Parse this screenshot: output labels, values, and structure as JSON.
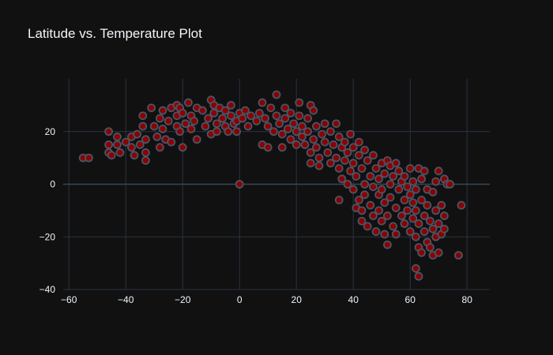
{
  "chart_data": {
    "type": "scatter",
    "title": "Latitude vs. Temperature Plot",
    "xlabel": "",
    "ylabel": "",
    "xlim": [
      -62,
      88
    ],
    "ylim": [
      -40,
      40
    ],
    "x_ticks": [
      -60,
      -40,
      -20,
      0,
      20,
      40,
      60,
      80
    ],
    "y_ticks": [
      -40,
      -20,
      0,
      20
    ],
    "grid": true,
    "marker_color": "#8b0000",
    "marker_edge_color": "#4a5566",
    "series": [
      {
        "values": [
          {
            "x": -55,
            "y": 10
          },
          {
            "x": -53,
            "y": 10
          },
          {
            "x": -46,
            "y": 20
          },
          {
            "x": -46,
            "y": 15
          },
          {
            "x": -46,
            "y": 12
          },
          {
            "x": -45,
            "y": 11
          },
          {
            "x": -43,
            "y": 18
          },
          {
            "x": -43,
            "y": 15
          },
          {
            "x": -42,
            "y": 12
          },
          {
            "x": -40,
            "y": 16
          },
          {
            "x": -38,
            "y": 18
          },
          {
            "x": -38,
            "y": 14
          },
          {
            "x": -37,
            "y": 11
          },
          {
            "x": -36,
            "y": 19
          },
          {
            "x": -35,
            "y": 15
          },
          {
            "x": -34,
            "y": 22
          },
          {
            "x": -34,
            "y": 26
          },
          {
            "x": -33,
            "y": 17
          },
          {
            "x": -33,
            "y": 12
          },
          {
            "x": -33,
            "y": 9
          },
          {
            "x": -31,
            "y": 29
          },
          {
            "x": -30,
            "y": 22
          },
          {
            "x": -29,
            "y": 18
          },
          {
            "x": -28,
            "y": 25
          },
          {
            "x": -28,
            "y": 14
          },
          {
            "x": -27,
            "y": 28
          },
          {
            "x": -27,
            "y": 21
          },
          {
            "x": -26,
            "y": 17
          },
          {
            "x": -25,
            "y": 24
          },
          {
            "x": -24,
            "y": 29
          },
          {
            "x": -24,
            "y": 16
          },
          {
            "x": -22,
            "y": 30
          },
          {
            "x": -22,
            "y": 26
          },
          {
            "x": -22,
            "y": 22
          },
          {
            "x": -21,
            "y": 29
          },
          {
            "x": -21,
            "y": 20
          },
          {
            "x": -20,
            "y": 14
          },
          {
            "x": -20,
            "y": 27
          },
          {
            "x": -19,
            "y": 23
          },
          {
            "x": -18,
            "y": 31
          },
          {
            "x": -17,
            "y": 26
          },
          {
            "x": -17,
            "y": 21
          },
          {
            "x": -16,
            "y": 24
          },
          {
            "x": -15,
            "y": 29
          },
          {
            "x": -15,
            "y": 17
          },
          {
            "x": -13,
            "y": 28
          },
          {
            "x": -12,
            "y": 22
          },
          {
            "x": -11,
            "y": 25
          },
          {
            "x": -10,
            "y": 32
          },
          {
            "x": -10,
            "y": 19
          },
          {
            "x": -9,
            "y": 30
          },
          {
            "x": -9,
            "y": 27
          },
          {
            "x": -8,
            "y": 23
          },
          {
            "x": -8,
            "y": 20
          },
          {
            "x": -7,
            "y": 29
          },
          {
            "x": -6,
            "y": 25
          },
          {
            "x": -5,
            "y": 28
          },
          {
            "x": -5,
            "y": 22
          },
          {
            "x": -4,
            "y": 20
          },
          {
            "x": -3,
            "y": 30
          },
          {
            "x": -3,
            "y": 26
          },
          {
            "x": -2,
            "y": 23
          },
          {
            "x": -1,
            "y": 24
          },
          {
            "x": -1,
            "y": 20
          },
          {
            "x": 0,
            "y": 27
          },
          {
            "x": 0,
            "y": 0
          },
          {
            "x": 1,
            "y": 25
          },
          {
            "x": 2,
            "y": 28
          },
          {
            "x": 3,
            "y": 22
          },
          {
            "x": 4,
            "y": 26
          },
          {
            "x": 6,
            "y": 24
          },
          {
            "x": 7,
            "y": 27
          },
          {
            "x": 8,
            "y": 31
          },
          {
            "x": 8,
            "y": 15
          },
          {
            "x": 9,
            "y": 25
          },
          {
            "x": 10,
            "y": 14
          },
          {
            "x": 10,
            "y": 22
          },
          {
            "x": 11,
            "y": 29
          },
          {
            "x": 12,
            "y": 20
          },
          {
            "x": 13,
            "y": 26
          },
          {
            "x": 13,
            "y": 34
          },
          {
            "x": 14,
            "y": 23
          },
          {
            "x": 15,
            "y": 19
          },
          {
            "x": 15,
            "y": 14
          },
          {
            "x": 16,
            "y": 29
          },
          {
            "x": 16,
            "y": 25
          },
          {
            "x": 17,
            "y": 21
          },
          {
            "x": 18,
            "y": 17
          },
          {
            "x": 18,
            "y": 27
          },
          {
            "x": 19,
            "y": 23
          },
          {
            "x": 20,
            "y": 15
          },
          {
            "x": 20,
            "y": 20
          },
          {
            "x": 21,
            "y": 26
          },
          {
            "x": 21,
            "y": 31
          },
          {
            "x": 22,
            "y": 22
          },
          {
            "x": 22,
            "y": 18
          },
          {
            "x": 23,
            "y": 15
          },
          {
            "x": 24,
            "y": 25
          },
          {
            "x": 24,
            "y": 20
          },
          {
            "x": 25,
            "y": 30
          },
          {
            "x": 25,
            "y": 12
          },
          {
            "x": 25,
            "y": 8
          },
          {
            "x": 26,
            "y": 28
          },
          {
            "x": 26,
            "y": 17
          },
          {
            "x": 27,
            "y": 22
          },
          {
            "x": 27,
            "y": 14
          },
          {
            "x": 28,
            "y": 10
          },
          {
            "x": 28,
            "y": 7
          },
          {
            "x": 29,
            "y": 19
          },
          {
            "x": 30,
            "y": 23
          },
          {
            "x": 30,
            "y": 16
          },
          {
            "x": 31,
            "y": 12
          },
          {
            "x": 32,
            "y": 8
          },
          {
            "x": 32,
            "y": 20
          },
          {
            "x": 33,
            "y": 15
          },
          {
            "x": 34,
            "y": 10
          },
          {
            "x": 34,
            "y": 23
          },
          {
            "x": 35,
            "y": 6
          },
          {
            "x": 35,
            "y": -6
          },
          {
            "x": 35,
            "y": 18
          },
          {
            "x": 36,
            "y": 14
          },
          {
            "x": 36,
            "y": 2
          },
          {
            "x": 37,
            "y": 9
          },
          {
            "x": 37,
            "y": 16
          },
          {
            "x": 38,
            "y": 0
          },
          {
            "x": 38,
            "y": 12
          },
          {
            "x": 39,
            "y": 5
          },
          {
            "x": 39,
            "y": 19
          },
          {
            "x": 40,
            "y": 14
          },
          {
            "x": 40,
            "y": 8
          },
          {
            "x": 40,
            "y": -2
          },
          {
            "x": 41,
            "y": -9
          },
          {
            "x": 41,
            "y": 3
          },
          {
            "x": 42,
            "y": 11
          },
          {
            "x": 42,
            "y": 16
          },
          {
            "x": 42,
            "y": -6
          },
          {
            "x": 43,
            "y": 6
          },
          {
            "x": 43,
            "y": -14
          },
          {
            "x": 43,
            "y": -10
          },
          {
            "x": 44,
            "y": 0
          },
          {
            "x": 44,
            "y": 13
          },
          {
            "x": 44,
            "y": -4
          },
          {
            "x": 45,
            "y": 9
          },
          {
            "x": 45,
            "y": -16
          },
          {
            "x": 46,
            "y": 3
          },
          {
            "x": 46,
            "y": -8
          },
          {
            "x": 47,
            "y": 11
          },
          {
            "x": 47,
            "y": -1
          },
          {
            "x": 47,
            "y": -12
          },
          {
            "x": 48,
            "y": 6
          },
          {
            "x": 48,
            "y": -18
          },
          {
            "x": 49,
            "y": -4
          },
          {
            "x": 49,
            "y": 2
          },
          {
            "x": 49,
            "y": -10
          },
          {
            "x": 50,
            "y": 8
          },
          {
            "x": 50,
            "y": -14
          },
          {
            "x": 50,
            "y": -2
          },
          {
            "x": 51,
            "y": 4
          },
          {
            "x": 51,
            "y": -7
          },
          {
            "x": 51,
            "y": -19
          },
          {
            "x": 52,
            "y": 9
          },
          {
            "x": 52,
            "y": -12
          },
          {
            "x": 52,
            "y": -23
          },
          {
            "x": 53,
            "y": 0
          },
          {
            "x": 53,
            "y": 7
          },
          {
            "x": 53,
            "y": -5
          },
          {
            "x": 54,
            "y": -16
          },
          {
            "x": 54,
            "y": 3
          },
          {
            "x": 55,
            "y": -9
          },
          {
            "x": 55,
            "y": 8
          },
          {
            "x": 55,
            "y": -19
          },
          {
            "x": 56,
            "y": -2
          },
          {
            "x": 56,
            "y": 5
          },
          {
            "x": 57,
            "y": -12
          },
          {
            "x": 57,
            "y": 1
          },
          {
            "x": 58,
            "y": -6
          },
          {
            "x": 58,
            "y": -15
          },
          {
            "x": 58,
            "y": 3
          },
          {
            "x": 59,
            "y": -10
          },
          {
            "x": 59,
            "y": -1
          },
          {
            "x": 60,
            "y": 6
          },
          {
            "x": 60,
            "y": -18
          },
          {
            "x": 60,
            "y": -4
          },
          {
            "x": 61,
            "y": -13
          },
          {
            "x": 61,
            "y": -7
          },
          {
            "x": 61,
            "y": 1
          },
          {
            "x": 62,
            "y": -20
          },
          {
            "x": 62,
            "y": -10
          },
          {
            "x": 62,
            "y": -32
          },
          {
            "x": 62,
            "y": -2
          },
          {
            "x": 63,
            "y": -35
          },
          {
            "x": 63,
            "y": -24
          },
          {
            "x": 63,
            "y": 6
          },
          {
            "x": 63,
            "y": -15
          },
          {
            "x": 64,
            "y": -6
          },
          {
            "x": 64,
            "y": -26
          },
          {
            "x": 64,
            "y": 2
          },
          {
            "x": 65,
            "y": -12
          },
          {
            "x": 65,
            "y": -18
          },
          {
            "x": 65,
            "y": 5
          },
          {
            "x": 66,
            "y": -22
          },
          {
            "x": 66,
            "y": -8
          },
          {
            "x": 66,
            "y": -2
          },
          {
            "x": 67,
            "y": -14
          },
          {
            "x": 67,
            "y": -24
          },
          {
            "x": 68,
            "y": -17
          },
          {
            "x": 68,
            "y": -3
          },
          {
            "x": 68,
            "y": -27
          },
          {
            "x": 69,
            "y": -10
          },
          {
            "x": 69,
            "y": -20
          },
          {
            "x": 69,
            "y": 1
          },
          {
            "x": 70,
            "y": -26
          },
          {
            "x": 70,
            "y": -15
          },
          {
            "x": 70,
            "y": 5
          },
          {
            "x": 71,
            "y": -8
          },
          {
            "x": 71,
            "y": -19
          },
          {
            "x": 72,
            "y": 2
          },
          {
            "x": 72,
            "y": -12
          },
          {
            "x": 72,
            "y": -17
          },
          {
            "x": 73,
            "y": 0
          },
          {
            "x": 74,
            "y": 0
          },
          {
            "x": 77,
            "y": -27
          },
          {
            "x": 78,
            "y": -8
          }
        ]
      }
    ]
  }
}
